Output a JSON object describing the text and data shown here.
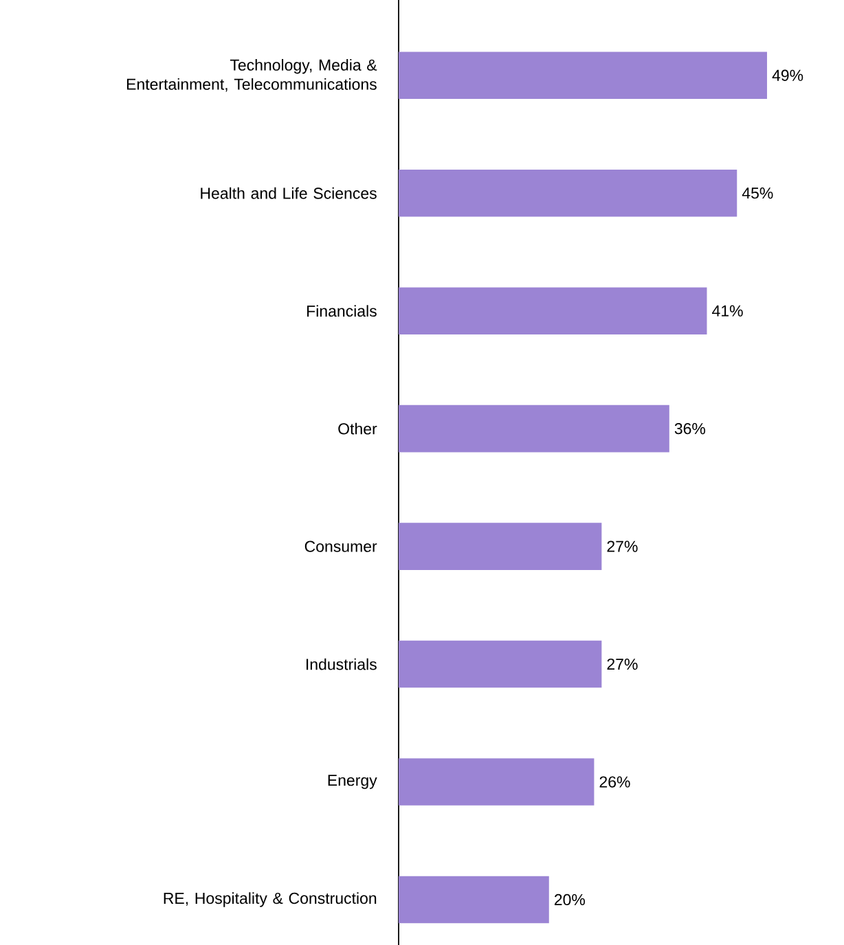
{
  "chart_data": {
    "type": "bar",
    "orientation": "horizontal",
    "categories": [
      "Technology, Media & Entertainment, Telecommunications",
      "Health and Life Sciences",
      "Financials",
      "Other",
      "Consumer",
      "Industrials",
      "Energy",
      "RE, Hospitality & Construction"
    ],
    "values": [
      49,
      45,
      41,
      36,
      27,
      27,
      26,
      20
    ],
    "value_labels": [
      "49%",
      "45%",
      "41%",
      "36%",
      "27%",
      "27%",
      "26%",
      "20%"
    ],
    "color": "#9b84d4"
  }
}
